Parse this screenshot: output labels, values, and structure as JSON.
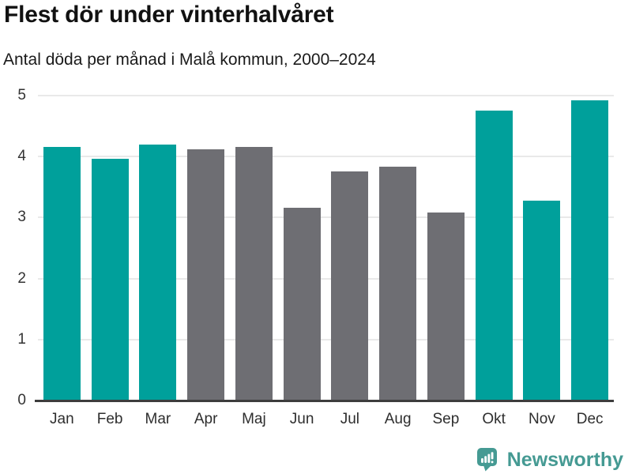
{
  "title": "Flest dör under vinterhalvåret",
  "subtitle": "Antal döda per månad i Malå kommun, 2000–2024",
  "chart_data": {
    "type": "bar",
    "title": "Flest dör under vinterhalvåret",
    "subtitle": "Antal döda per månad i Malå kommun, 2000–2024",
    "categories": [
      "Jan",
      "Feb",
      "Mar",
      "Apr",
      "Maj",
      "Jun",
      "Jul",
      "Aug",
      "Sep",
      "Okt",
      "Nov",
      "Dec"
    ],
    "values": [
      4.16,
      3.96,
      4.2,
      4.12,
      4.16,
      3.16,
      3.76,
      3.84,
      3.08,
      4.76,
      3.28,
      4.92
    ],
    "bar_color_keys": [
      "teal",
      "teal",
      "teal",
      "gray",
      "gray",
      "gray",
      "gray",
      "gray",
      "gray",
      "teal",
      "teal",
      "teal"
    ],
    "colors": {
      "teal": "#00a09b",
      "gray": "#6e6e73"
    },
    "highlighted_months": [
      "Jan",
      "Feb",
      "Mar",
      "Okt",
      "Nov",
      "Dec"
    ],
    "xlabel": "",
    "ylabel": "",
    "ylim": [
      0,
      5
    ],
    "yticks": [
      0,
      1,
      2,
      3,
      4,
      5
    ],
    "grid": true,
    "gridline_color": "#e9e9e9",
    "axis_color": "#3d3d3d",
    "legend": false
  },
  "footer": {
    "brand": "Newsworthy",
    "brand_color": "#459a93",
    "logo_icon": "bar-chart-speech-bubble-icon"
  }
}
